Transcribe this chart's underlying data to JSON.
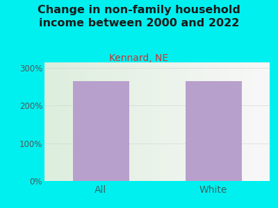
{
  "title": "Change in non-family household\nincome between 2000 and 2022",
  "subtitle": "Kennard, NE",
  "categories": [
    "All",
    "White"
  ],
  "values": [
    265,
    265
  ],
  "bar_color": "#b8a0cc",
  "background_color": "#00f0f0",
  "plot_bg_color_left": "#ddeedd",
  "plot_bg_color_right": "#f8f8f8",
  "title_fontsize": 11.5,
  "subtitle_fontsize": 10,
  "title_color": "#1a1a1a",
  "subtitle_color": "#cc3333",
  "tick_color": "#555555",
  "xtick_color": "#336666",
  "yticks": [
    0,
    100,
    200,
    300
  ],
  "ytick_labels": [
    "0%",
    "100%",
    "200%",
    "300%"
  ],
  "ylim": [
    0,
    315
  ],
  "bar_width": 0.5
}
